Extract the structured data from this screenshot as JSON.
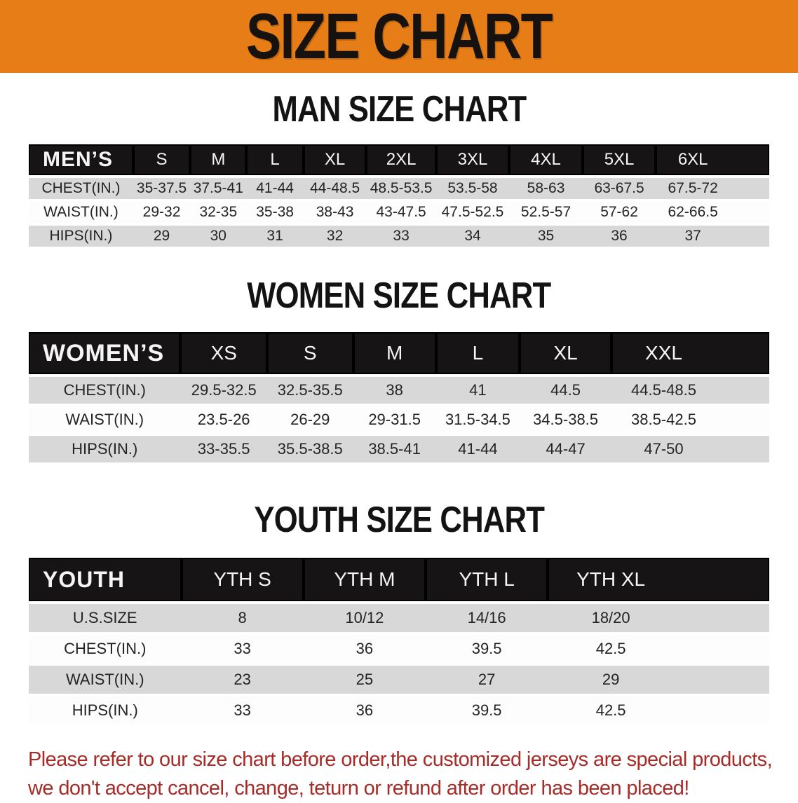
{
  "banner": {
    "title": "SIZE CHART",
    "bg_color": "#e67d16",
    "text_color": "#151210"
  },
  "sections": [
    {
      "title": "MAN SIZE CHART",
      "table": {
        "header_label": "MEN’S",
        "columns": [
          "S",
          "M",
          "L",
          "XL",
          "2XL",
          "3XL",
          "4XL",
          "5XL",
          "6XL"
        ],
        "rows": [
          {
            "label": "CHEST(IN.)",
            "values": [
              "35-37.5",
              "37.5-41",
              "41-44",
              "44-48.5",
              "48.5-53.5",
              "53.5-58",
              "58-63",
              "63-67.5",
              "67.5-72"
            ]
          },
          {
            "label": "WAIST(IN.)",
            "values": [
              "29-32",
              "32-35",
              "35-38",
              "38-43",
              "43-47.5",
              "47.5-52.5",
              "52.5-57",
              "57-62",
              "62-66.5"
            ]
          },
          {
            "label": "HIPS(IN.)",
            "values": [
              "29",
              "30",
              "31",
              "32",
              "33",
              "34",
              "35",
              "36",
              "37"
            ]
          }
        ]
      }
    },
    {
      "title": "WOMEN SIZE CHART",
      "table": {
        "header_label": "WOMEN’S",
        "columns": [
          "XS",
          "S",
          "M",
          "L",
          "XL",
          "XXL"
        ],
        "rows": [
          {
            "label": "CHEST(IN.)",
            "values": [
              "29.5-32.5",
              "32.5-35.5",
              "38",
              "41",
              "44.5",
              "44.5-48.5"
            ]
          },
          {
            "label": "WAIST(IN.)",
            "values": [
              "23.5-26",
              "26-29",
              "29-31.5",
              "31.5-34.5",
              "34.5-38.5",
              "38.5-42.5"
            ]
          },
          {
            "label": "HIPS(IN.)",
            "values": [
              "33-35.5",
              "35.5-38.5",
              "38.5-41",
              "41-44",
              "44-47",
              "47-50"
            ]
          }
        ]
      }
    },
    {
      "title": "YOUTH SIZE CHART",
      "table": {
        "header_label": "YOUTH",
        "columns": [
          "YTH S",
          "YTH M",
          "YTH L",
          "YTH XL"
        ],
        "rows": [
          {
            "label": "U.S.SIZE",
            "values": [
              "8",
              "10/12",
              "14/16",
              "18/20"
            ]
          },
          {
            "label": "CHEST(IN.)",
            "values": [
              "33",
              "36",
              "39.5",
              "42.5"
            ]
          },
          {
            "label": "WAIST(IN.)",
            "values": [
              "23",
              "25",
              "27",
              "29"
            ]
          },
          {
            "label": "HIPS(IN.)",
            "values": [
              "33",
              "36",
              "39.5",
              "42.5"
            ]
          }
        ]
      }
    }
  ],
  "footer": {
    "line1": "Please refer to our size chart before order,the customized jerseys are special products,",
    "line2": "we don't accept cancel, change, teturn or refund after order has been placed!",
    "text_color": "#a72c28"
  }
}
